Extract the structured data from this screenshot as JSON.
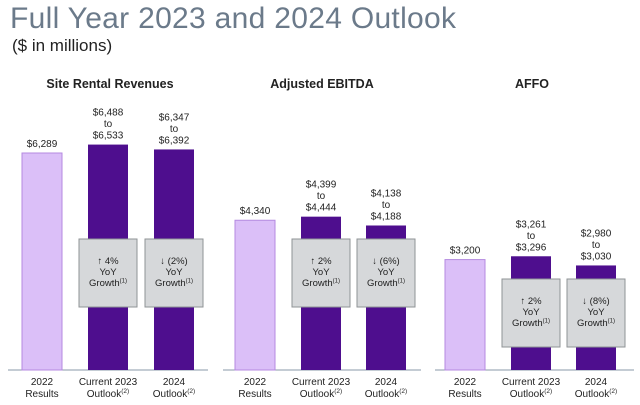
{
  "title": "Full Year 2023 and 2024 Outlook",
  "subtitle": "($ in millions)",
  "colors": {
    "light_bar": "#dbbff8",
    "light_bar_stroke": "#b48ae0",
    "dark_bar": "#4e0e8e",
    "growth_box": "#d6d8da",
    "growth_box_stroke": "#8f9396",
    "baseline": "#8a9aa8",
    "text": "#222222"
  },
  "chart_data": [
    {
      "type": "bar",
      "title": "Site Rental Revenues",
      "ylim": [
        0,
        7000
      ],
      "categories": [
        "2022 Results",
        "Current 2023 Outlook(2)",
        "2024 Outlook(2)"
      ],
      "category_lines": [
        [
          "2022",
          "Results"
        ],
        [
          "Current 2023",
          "Outlook",
          "(2)"
        ],
        [
          "2024",
          "Outlook",
          "(2)"
        ]
      ],
      "values": [
        6289,
        6533,
        6392
      ],
      "value_labels": [
        [
          "$6,289"
        ],
        [
          "$6,488",
          "to",
          "$6,533"
        ],
        [
          "$6,347",
          "to",
          "$6,392"
        ]
      ],
      "growth": [
        null,
        [
          "↑ 4%",
          "YoY",
          "Growth",
          "(1)"
        ],
        [
          "↓ (2%)",
          "YoY",
          "Growth",
          "(1)"
        ]
      ]
    },
    {
      "type": "bar",
      "title": "Adjusted EBITDA",
      "ylim": [
        0,
        7000
      ],
      "categories": [
        "2022 Results",
        "Current 2023 Outlook(2)",
        "2024 Outlook(2)"
      ],
      "category_lines": [
        [
          "2022",
          "Results"
        ],
        [
          "Current 2023",
          "Outlook",
          "(2)"
        ],
        [
          "2024",
          "Outlook",
          "(2)"
        ]
      ],
      "values": [
        4340,
        4444,
        4188
      ],
      "value_labels": [
        [
          "$4,340"
        ],
        [
          "$4,399",
          "to",
          "$4,444"
        ],
        [
          "$4,138",
          "to",
          "$4,188"
        ]
      ],
      "growth": [
        null,
        [
          "↑ 2%",
          "YoY",
          "Growth",
          "(1)"
        ],
        [
          "↓ (6%)",
          "YoY",
          "Growth",
          "(1)"
        ]
      ]
    },
    {
      "type": "bar",
      "title": "AFFO",
      "ylim": [
        0,
        7000
      ],
      "categories": [
        "2022 Results",
        "Current 2023 Outlook(2)",
        "2024 Outlook(2)"
      ],
      "category_lines": [
        [
          "2022",
          "Results"
        ],
        [
          "Current 2023",
          "Outlook",
          "(2)"
        ],
        [
          "2024",
          "Outlook",
          "(2)"
        ]
      ],
      "values": [
        3200,
        3296,
        3030
      ],
      "value_labels": [
        [
          "$3,200"
        ],
        [
          "$3,261",
          "to",
          "$3,296"
        ],
        [
          "$2,980",
          "to",
          "$3,030"
        ]
      ],
      "growth": [
        null,
        [
          "↑ 2%",
          "YoY",
          "Growth",
          "(1)"
        ],
        [
          "↓ (8%)",
          "YoY",
          "Growth",
          "(1)"
        ]
      ]
    }
  ]
}
